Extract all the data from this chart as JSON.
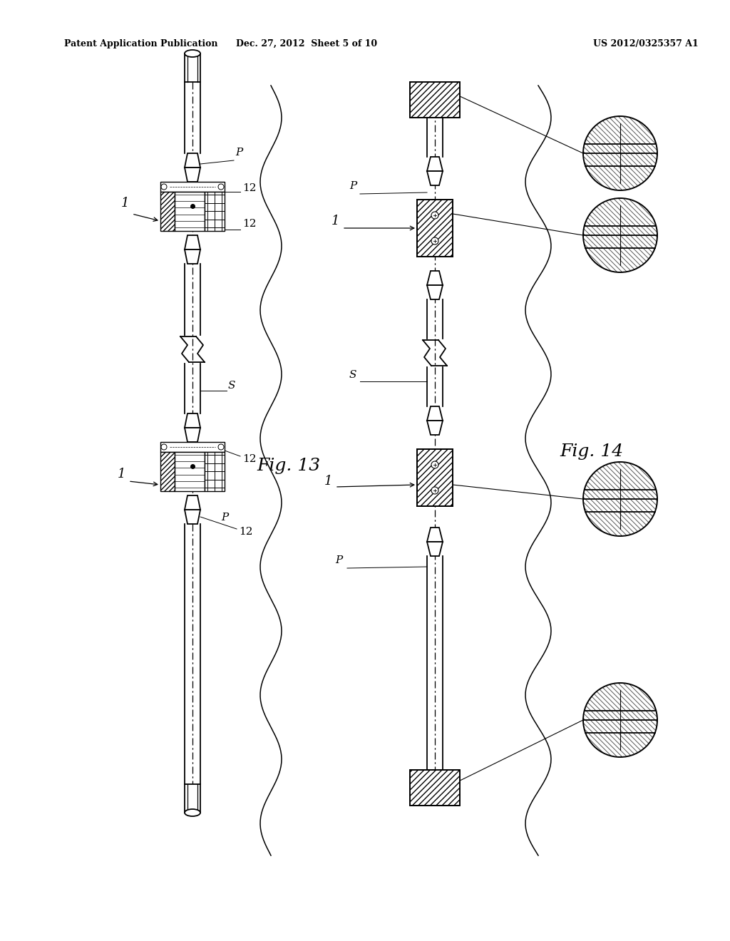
{
  "bg_color": "#ffffff",
  "header_left": "Patent Application Publication",
  "header_mid": "Dec. 27, 2012  Sheet 5 of 10",
  "header_right": "US 2012/0325357 A1",
  "fig13_label": "Fig. 13",
  "fig14_label": "Fig. 14"
}
